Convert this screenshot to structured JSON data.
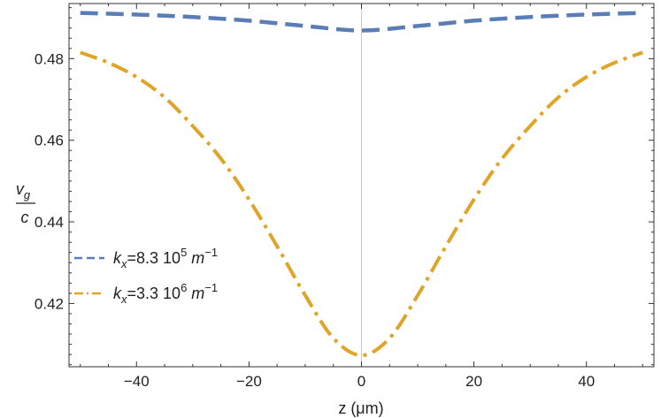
{
  "chart_data": {
    "type": "line",
    "xlabel": "z (μm)",
    "ylabel_numerator": "v",
    "ylabel_numerator_sub": "g",
    "ylabel_denominator": "c",
    "xlim": [
      -52,
      52
    ],
    "ylim": [
      0.4045,
      0.4935
    ],
    "xticks": [
      -40,
      -20,
      0,
      20,
      40
    ],
    "xtick_labels": [
      "−40",
      "−20",
      "0",
      "20",
      "40"
    ],
    "yticks": [
      0.42,
      0.44,
      0.46,
      0.48
    ],
    "ytick_labels": [
      "0.42",
      "0.44",
      "0.46",
      "0.48"
    ],
    "grid": false,
    "legend_position": "center-left",
    "series": [
      {
        "name_parts": [
          "k",
          "x",
          "=8.3 10",
          "5",
          " m",
          "−1"
        ],
        "color": "#5B7DB5",
        "style": "dashed",
        "x": [
          -50,
          -40,
          -30,
          -20,
          -10,
          0,
          10,
          20,
          30,
          40,
          50
        ],
        "y": [
          0.4912,
          0.4908,
          0.4902,
          0.4893,
          0.488,
          0.4869,
          0.488,
          0.4893,
          0.4902,
          0.4908,
          0.4912
        ]
      },
      {
        "name_parts": [
          "k",
          "x",
          "=3.3 10",
          "6",
          " m",
          "−1"
        ],
        "color": "#E0A428",
        "style": "dashdot",
        "x": [
          -50,
          -45,
          -40,
          -35,
          -30,
          -25,
          -20,
          -15,
          -10,
          -5,
          0,
          5,
          10,
          15,
          20,
          25,
          30,
          35,
          40,
          45,
          50
        ],
        "y": [
          0.4815,
          0.479,
          0.4755,
          0.4705,
          0.4635,
          0.4555,
          0.4455,
          0.434,
          0.422,
          0.4115,
          0.4073,
          0.4115,
          0.422,
          0.434,
          0.4455,
          0.4555,
          0.4635,
          0.4705,
          0.4755,
          0.479,
          0.4815
        ]
      }
    ]
  }
}
